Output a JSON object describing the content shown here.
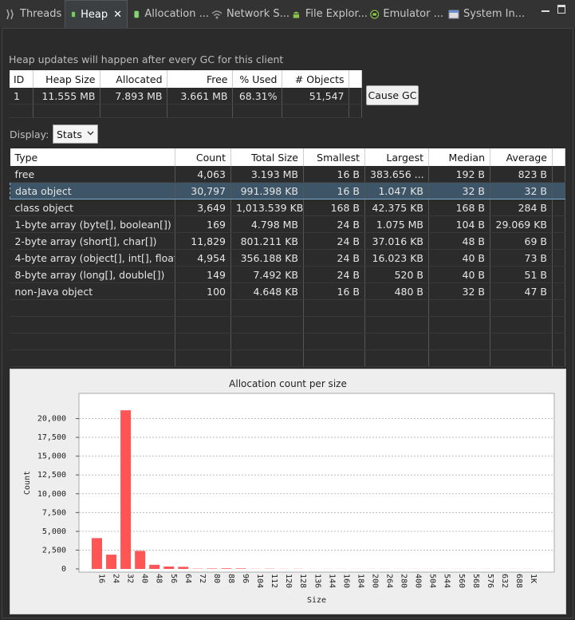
{
  "tabs": [
    {
      "label": "Threads",
      "icon": "threads-icon",
      "active": false
    },
    {
      "label": "Heap",
      "icon": "heap-icon",
      "active": true
    },
    {
      "label": "Allocation ...",
      "icon": "allocation-icon",
      "active": false
    },
    {
      "label": "Network S...",
      "icon": "network-icon",
      "active": false
    },
    {
      "label": "File Explor...",
      "icon": "android-icon",
      "active": false
    },
    {
      "label": "Emulator ...",
      "icon": "emulator-icon",
      "active": false
    },
    {
      "label": "System In...",
      "icon": "system-info-icon",
      "active": false
    }
  ],
  "heap_note": "Heap updates will happen after every GC for this client",
  "summary": {
    "headers": [
      "ID",
      "Heap Size",
      "Allocated",
      "Free",
      "% Used",
      "# Objects"
    ],
    "rows": [
      [
        "1",
        "11.555 MB",
        "7.893 MB",
        "3.661 MB",
        "68.31%",
        "51,547"
      ]
    ]
  },
  "cause_gc_label": "Cause GC",
  "display": {
    "label": "Display:",
    "value": "Stats"
  },
  "stats": {
    "headers": [
      "Type",
      "Count",
      "Total Size",
      "Smallest",
      "Largest",
      "Median",
      "Average"
    ],
    "rows": [
      [
        "free",
        "4,063",
        "3.193 MB",
        "16 B",
        "383.656 ...",
        "192 B",
        "823 B"
      ],
      [
        "data object",
        "30,797",
        "991.398 KB",
        "16 B",
        "1.047 KB",
        "32 B",
        "32 B"
      ],
      [
        "class object",
        "3,649",
        "1,013.539 KB",
        "168 B",
        "42.375 KB",
        "168 B",
        "284 B"
      ],
      [
        "1-byte array (byte[], boolean[])",
        "169",
        "4.798 MB",
        "24 B",
        "1.075 MB",
        "104 B",
        "29.069 KB"
      ],
      [
        "2-byte array (short[], char[])",
        "11,829",
        "801.211 KB",
        "24 B",
        "37.016 KB",
        "48 B",
        "69 B"
      ],
      [
        "4-byte array (object[], int[], float[])",
        "4,954",
        "356.188 KB",
        "24 B",
        "16.023 KB",
        "40 B",
        "73 B"
      ],
      [
        "8-byte array (long[], double[])",
        "149",
        "7.492 KB",
        "24 B",
        "520 B",
        "40 B",
        "51 B"
      ],
      [
        "non-Java object",
        "100",
        "4.648 KB",
        "16 B",
        "480 B",
        "32 B",
        "47 B"
      ]
    ],
    "selected_row": 1
  },
  "chart_data": {
    "type": "bar",
    "title": "Allocation count per size",
    "xlabel": "Size",
    "ylabel": "Count",
    "ylim": [
      0,
      22500
    ],
    "yticks": [
      "0",
      "2,500",
      "5,000",
      "7,500",
      "10,000",
      "12,500",
      "15,000",
      "17,500",
      "20,000"
    ],
    "categories": [
      "16",
      "24",
      "32",
      "40",
      "48",
      "56",
      "64",
      "72",
      "80",
      "88",
      "96",
      "104",
      "112",
      "120",
      "128",
      "136",
      "144",
      "160",
      "184",
      "200",
      "264",
      "280",
      "400",
      "504",
      "544",
      "560",
      "568",
      "576",
      "632",
      "688",
      "1K"
    ],
    "values": [
      4100,
      1900,
      21100,
      2400,
      550,
      320,
      280,
      40,
      60,
      80,
      70,
      20,
      30,
      15,
      20,
      10,
      10,
      10,
      10,
      10,
      10,
      10,
      10,
      10,
      10,
      10,
      10,
      10,
      10,
      10,
      10
    ],
    "grid": true,
    "bar_color": "#ff5555"
  }
}
